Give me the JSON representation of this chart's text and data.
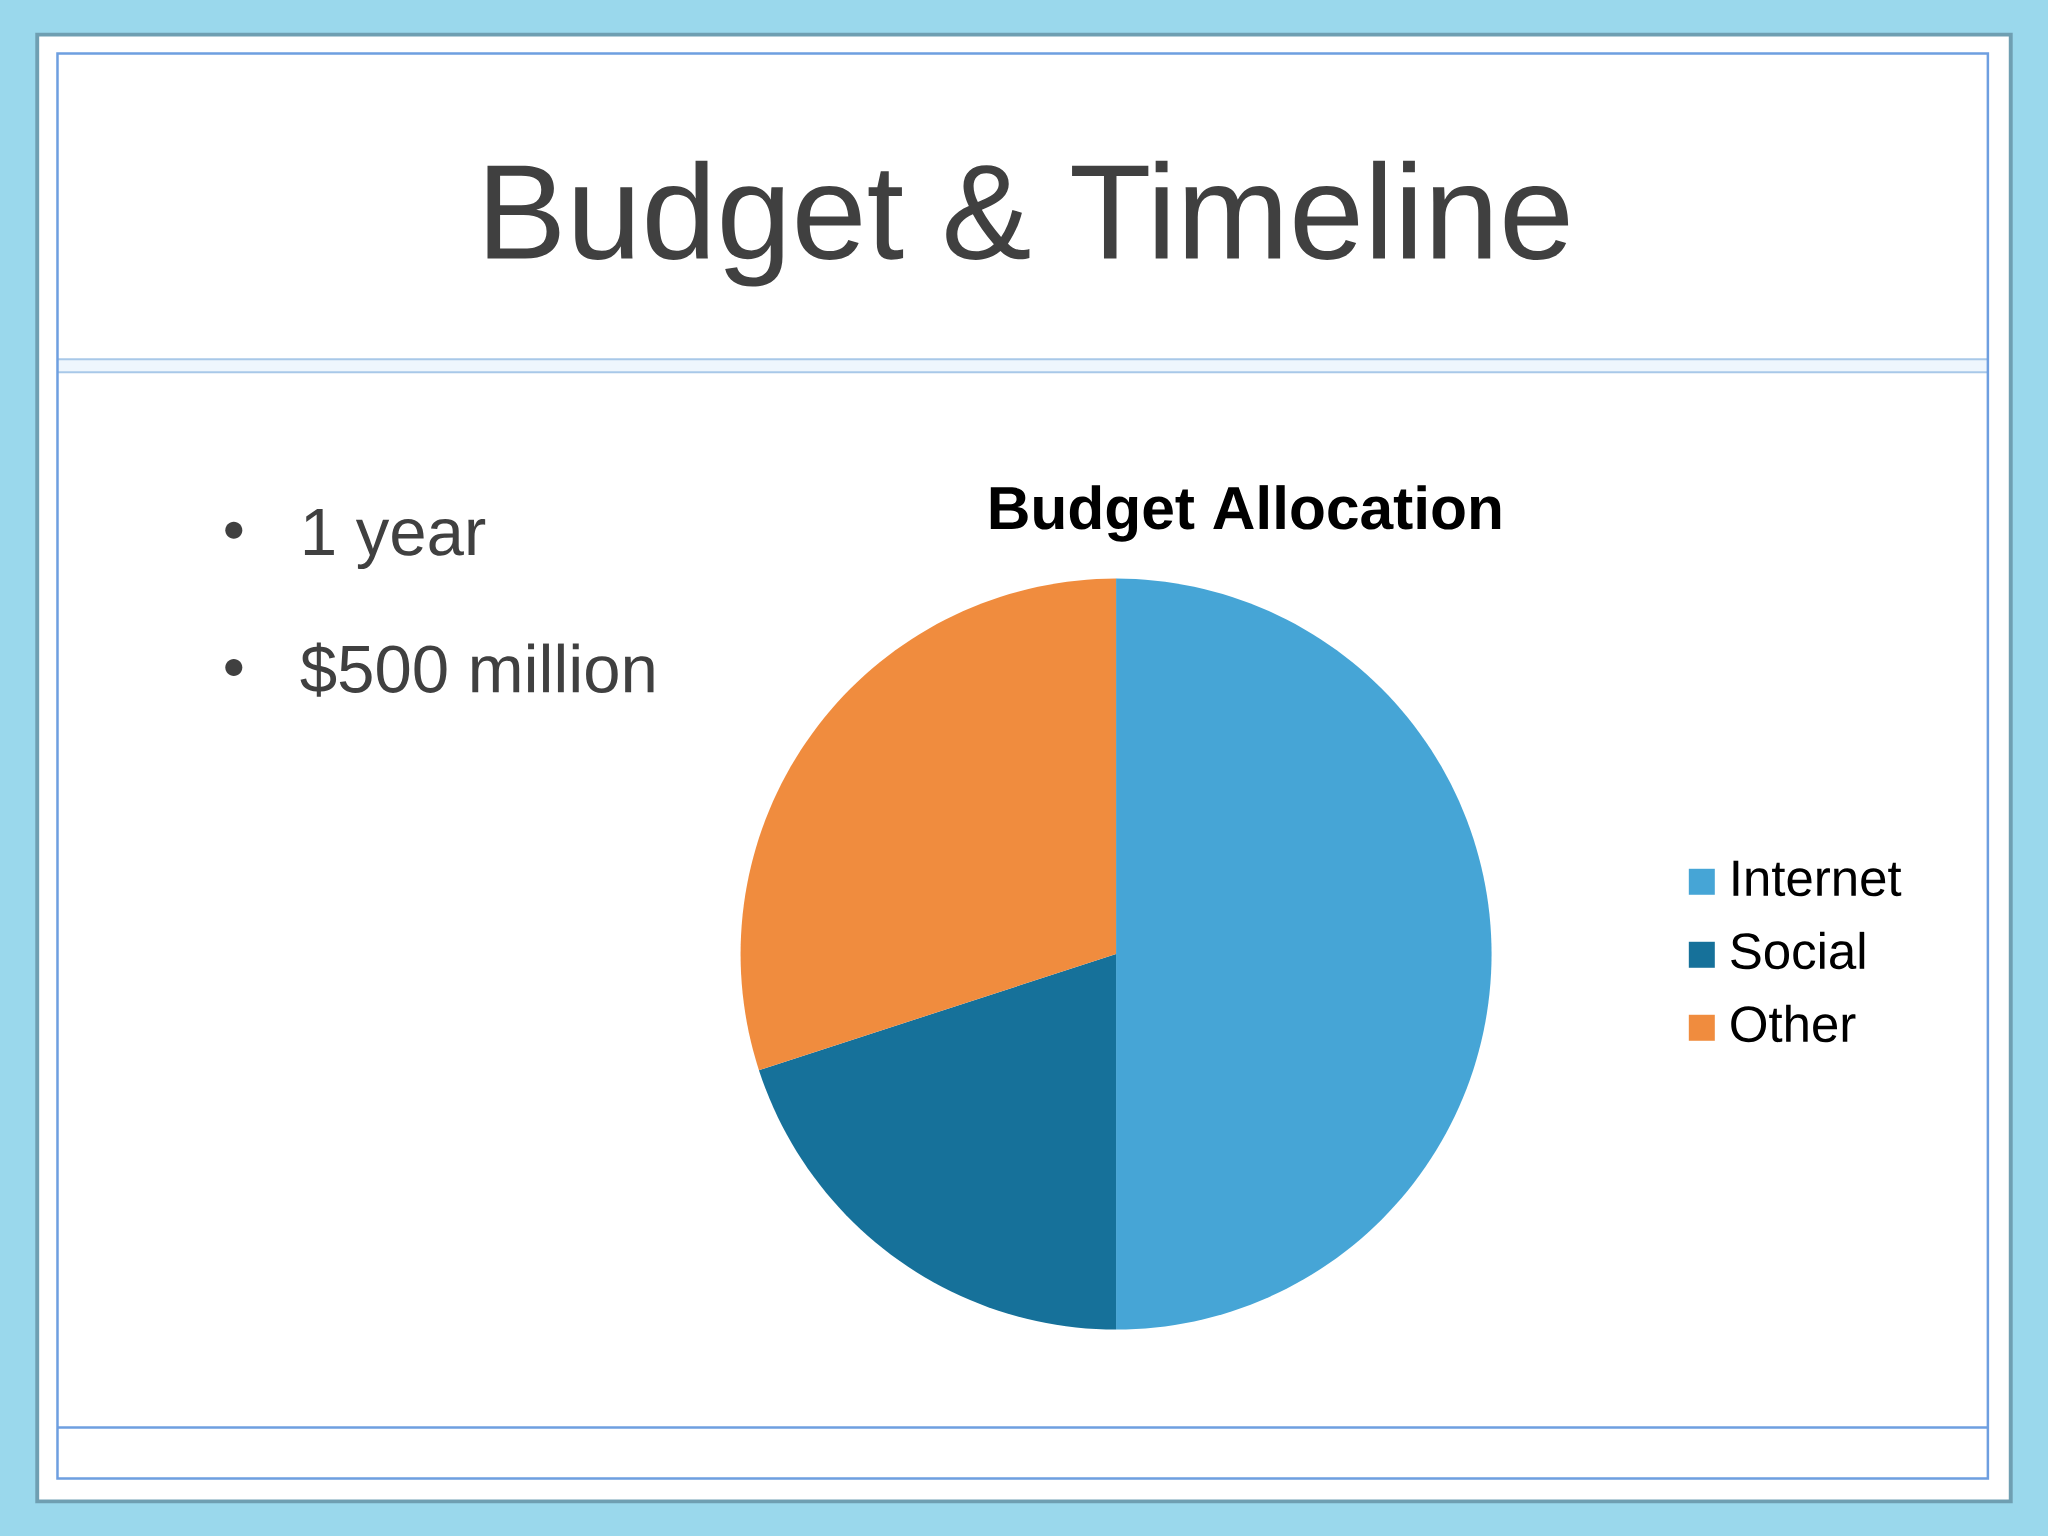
{
  "chart_data": {
    "type": "pie",
    "title": "Budget & Timeline",
    "subtitle": "Budget Allocation",
    "annotations": [
      "1 year",
      "$500 million"
    ],
    "categories": [
      "Internet",
      "Social",
      "Other"
    ],
    "values": [
      50,
      20,
      30
    ],
    "colors": [
      "#46a5d6",
      "#16719a",
      "#f08c3e"
    ],
    "legend": "right"
  }
}
